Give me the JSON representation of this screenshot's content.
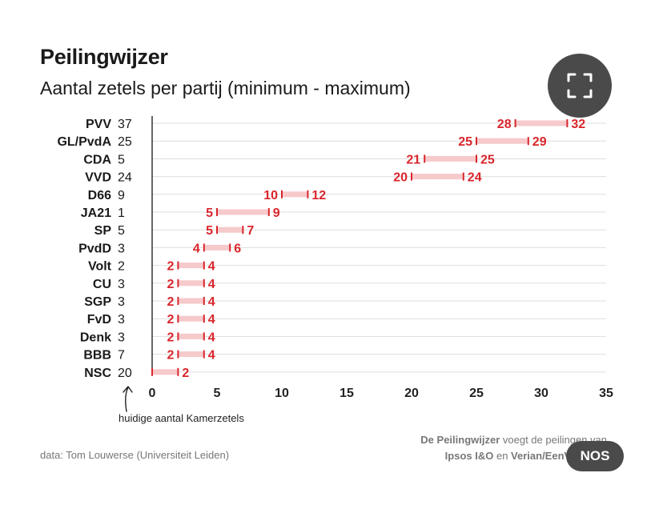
{
  "header": {
    "title": "Peilingwijzer",
    "subtitle": "Aantal zetels per partij (minimum - maximum)"
  },
  "chart_data": {
    "type": "range-bar",
    "title": "Peilingwijzer",
    "subtitle": "Aantal zetels per partij (minimum - maximum)",
    "xlim": [
      0,
      35
    ],
    "x_ticks": [
      0,
      5,
      10,
      15,
      20,
      25,
      30,
      35
    ],
    "grid": true,
    "annotation": "huidige aantal Kamerzetels",
    "colors": {
      "range_fill": "#f6c9cb",
      "marker": "#d9262c",
      "label": "#d9262c",
      "axis": "#333333",
      "grid": "#dddddd"
    },
    "parties": [
      {
        "name": "PVV",
        "current": 37,
        "min": 28,
        "max": 32
      },
      {
        "name": "GL/PvdA",
        "current": 25,
        "min": 25,
        "max": 29
      },
      {
        "name": "CDA",
        "current": 5,
        "min": 21,
        "max": 25
      },
      {
        "name": "VVD",
        "current": 24,
        "min": 20,
        "max": 24
      },
      {
        "name": "D66",
        "current": 9,
        "min": 10,
        "max": 12
      },
      {
        "name": "JA21",
        "current": 1,
        "min": 5,
        "max": 9
      },
      {
        "name": "SP",
        "current": 5,
        "min": 5,
        "max": 7
      },
      {
        "name": "PvdD",
        "current": 3,
        "min": 4,
        "max": 6
      },
      {
        "name": "Volt",
        "current": 2,
        "min": 2,
        "max": 4
      },
      {
        "name": "CU",
        "current": 3,
        "min": 2,
        "max": 4
      },
      {
        "name": "SGP",
        "current": 3,
        "min": 2,
        "max": 4
      },
      {
        "name": "FvD",
        "current": 3,
        "min": 2,
        "max": 4
      },
      {
        "name": "Denk",
        "current": 3,
        "min": 2,
        "max": 4
      },
      {
        "name": "BBB",
        "current": 7,
        "min": 2,
        "max": 4
      },
      {
        "name": "NSC",
        "current": 20,
        "min": 0,
        "max": 2
      }
    ]
  },
  "footer": {
    "source": "data: Tom Louwerse (Universiteit Leiden)",
    "credit_bold": "De Peilingwijzer",
    "credit_text": " voegt de peilingen van",
    "pollster_1": "Ipsos I&O",
    "pollster_sep": " en ",
    "pollster_2": "Verian/EenVandaag"
  },
  "badge": {
    "label": "NOS"
  },
  "icons": {
    "expand": "expand-icon"
  }
}
